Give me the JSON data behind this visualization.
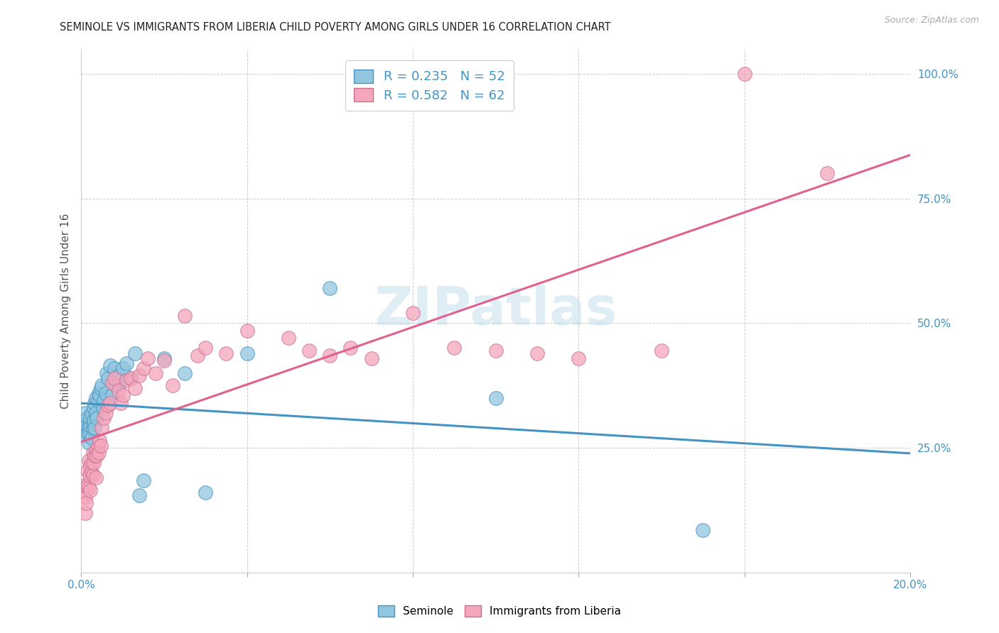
{
  "title": "SEMINOLE VS IMMIGRANTS FROM LIBERIA CHILD POVERTY AMONG GIRLS UNDER 16 CORRELATION CHART",
  "source": "Source: ZipAtlas.com",
  "ylabel": "Child Poverty Among Girls Under 16",
  "xlim": [
    0.0,
    0.2
  ],
  "ylim": [
    0.0,
    1.05
  ],
  "xticks": [
    0.0,
    0.04,
    0.08,
    0.12,
    0.16,
    0.2
  ],
  "xticklabels": [
    "0.0%",
    "",
    "",
    "",
    "",
    "20.0%"
  ],
  "yticks_right": [
    0.0,
    0.25,
    0.5,
    0.75,
    1.0
  ],
  "yticklabels_right": [
    "",
    "25.0%",
    "50.0%",
    "75.0%",
    "100.0%"
  ],
  "watermark": "ZIPatlas",
  "seminole_color": "#92c5de",
  "liberia_color": "#f4a6bc",
  "seminole_line_color": "#4393c3",
  "liberia_line_color": "#d6604d",
  "background_color": "#ffffff",
  "grid_color": "#cccccc",
  "seminole_x": [
    0.0008,
    0.001,
    0.001,
    0.0012,
    0.0015,
    0.0015,
    0.0018,
    0.0018,
    0.002,
    0.002,
    0.0022,
    0.0022,
    0.0025,
    0.0025,
    0.0028,
    0.0028,
    0.003,
    0.003,
    0.0032,
    0.0032,
    0.0035,
    0.0035,
    0.0038,
    0.004,
    0.0042,
    0.0045,
    0.0048,
    0.005,
    0.0052,
    0.0055,
    0.006,
    0.0062,
    0.0065,
    0.007,
    0.0075,
    0.008,
    0.0085,
    0.009,
    0.0095,
    0.01,
    0.011,
    0.012,
    0.013,
    0.014,
    0.015,
    0.02,
    0.025,
    0.03,
    0.04,
    0.06,
    0.1,
    0.15
  ],
  "seminole_y": [
    0.285,
    0.295,
    0.32,
    0.275,
    0.28,
    0.31,
    0.29,
    0.26,
    0.3,
    0.28,
    0.295,
    0.31,
    0.27,
    0.32,
    0.29,
    0.3,
    0.33,
    0.305,
    0.34,
    0.29,
    0.32,
    0.35,
    0.31,
    0.345,
    0.36,
    0.355,
    0.37,
    0.375,
    0.33,
    0.345,
    0.36,
    0.4,
    0.39,
    0.415,
    0.355,
    0.41,
    0.375,
    0.395,
    0.385,
    0.41,
    0.42,
    0.39,
    0.44,
    0.155,
    0.185,
    0.43,
    0.4,
    0.16,
    0.44,
    0.57,
    0.35,
    0.085
  ],
  "liberia_x": [
    0.0005,
    0.0008,
    0.001,
    0.001,
    0.0012,
    0.0015,
    0.0015,
    0.0018,
    0.0018,
    0.002,
    0.0022,
    0.0022,
    0.0025,
    0.0025,
    0.0028,
    0.0028,
    0.003,
    0.0032,
    0.0035,
    0.0035,
    0.0038,
    0.004,
    0.0042,
    0.0045,
    0.0048,
    0.005,
    0.0055,
    0.006,
    0.0065,
    0.007,
    0.0075,
    0.008,
    0.009,
    0.0095,
    0.01,
    0.011,
    0.012,
    0.013,
    0.014,
    0.015,
    0.016,
    0.018,
    0.02,
    0.022,
    0.025,
    0.028,
    0.03,
    0.035,
    0.04,
    0.05,
    0.055,
    0.06,
    0.065,
    0.07,
    0.08,
    0.09,
    0.1,
    0.11,
    0.12,
    0.14,
    0.16,
    0.18
  ],
  "liberia_y": [
    0.155,
    0.175,
    0.12,
    0.15,
    0.14,
    0.175,
    0.205,
    0.17,
    0.225,
    0.195,
    0.215,
    0.165,
    0.2,
    0.22,
    0.24,
    0.195,
    0.22,
    0.235,
    0.245,
    0.19,
    0.235,
    0.255,
    0.24,
    0.265,
    0.255,
    0.29,
    0.31,
    0.32,
    0.335,
    0.34,
    0.38,
    0.39,
    0.365,
    0.34,
    0.355,
    0.385,
    0.39,
    0.37,
    0.395,
    0.41,
    0.43,
    0.4,
    0.425,
    0.375,
    0.515,
    0.435,
    0.45,
    0.44,
    0.485,
    0.47,
    0.445,
    0.435,
    0.45,
    0.43,
    0.52,
    0.45,
    0.445,
    0.44,
    0.43,
    0.445,
    1.0,
    0.8
  ]
}
